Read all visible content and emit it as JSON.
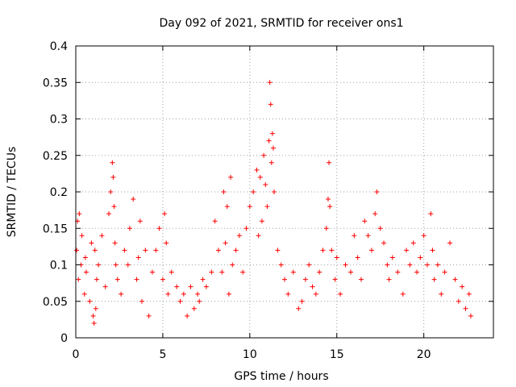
{
  "chart_data": {
    "type": "scatter",
    "title": "Day 092 of 2021, SRMTID for receiver ons1",
    "xlabel": "GPS time / hours",
    "ylabel": "SRMTID / TECUs",
    "xlim": [
      0,
      24
    ],
    "ylim": [
      0,
      0.4
    ],
    "x_ticks": [
      0,
      5,
      10,
      15,
      20
    ],
    "x_tick_labels": [
      "0",
      "5",
      "10",
      "15",
      "20"
    ],
    "y_ticks": [
      0,
      0.05,
      0.1,
      0.15,
      0.2,
      0.25,
      0.3,
      0.35,
      0.4
    ],
    "y_tick_labels": [
      "0",
      "0.05",
      "0.1",
      "0.15",
      "0.2",
      "0.25",
      "0.3",
      "0.35",
      "0.4"
    ],
    "grid": true,
    "marker": "+",
    "marker_color": "#ff0000",
    "series": [
      {
        "name": "SRMTID",
        "x": [
          0.05,
          0.1,
          0.15,
          0.2,
          0.3,
          0.35,
          0.5,
          0.55,
          0.6,
          0.8,
          0.9,
          1.0,
          1.05,
          1.1,
          1.15,
          1.2,
          1.3,
          1.5,
          1.7,
          1.9,
          2.0,
          2.1,
          2.15,
          2.2,
          2.25,
          2.3,
          2.4,
          2.6,
          2.8,
          3.0,
          3.1,
          3.3,
          3.5,
          3.6,
          3.7,
          3.8,
          4.0,
          4.2,
          4.4,
          4.6,
          4.8,
          5.0,
          5.1,
          5.2,
          5.3,
          5.5,
          5.8,
          6.0,
          6.2,
          6.4,
          6.6,
          6.8,
          7.0,
          7.1,
          7.3,
          7.5,
          7.8,
          8.0,
          8.2,
          8.4,
          8.5,
          8.6,
          8.7,
          8.8,
          8.9,
          9.0,
          9.2,
          9.4,
          9.6,
          9.8,
          10.0,
          10.2,
          10.4,
          10.5,
          10.6,
          10.7,
          10.8,
          10.9,
          11.0,
          11.1,
          11.15,
          11.2,
          11.25,
          11.3,
          11.35,
          11.4,
          11.6,
          11.8,
          12.0,
          12.2,
          12.5,
          12.8,
          13.0,
          13.2,
          13.4,
          13.6,
          13.8,
          14.0,
          14.2,
          14.4,
          14.5,
          14.55,
          14.6,
          14.7,
          14.9,
          15.0,
          15.2,
          15.5,
          15.8,
          16.0,
          16.2,
          16.4,
          16.6,
          16.8,
          17.0,
          17.2,
          17.3,
          17.5,
          17.7,
          17.9,
          18.0,
          18.2,
          18.5,
          18.8,
          19.0,
          19.2,
          19.4,
          19.6,
          19.8,
          20.0,
          20.2,
          20.4,
          20.5,
          20.6,
          20.8,
          21.0,
          21.2,
          21.5,
          21.8,
          22.0,
          22.2,
          22.4,
          22.6,
          22.7
        ],
        "y": [
          0.12,
          0.16,
          0.08,
          0.17,
          0.1,
          0.14,
          0.06,
          0.11,
          0.09,
          0.05,
          0.13,
          0.03,
          0.02,
          0.12,
          0.04,
          0.08,
          0.1,
          0.14,
          0.07,
          0.17,
          0.2,
          0.24,
          0.22,
          0.18,
          0.13,
          0.1,
          0.08,
          0.06,
          0.12,
          0.1,
          0.15,
          0.19,
          0.08,
          0.11,
          0.16,
          0.05,
          0.12,
          0.03,
          0.09,
          0.12,
          0.15,
          0.08,
          0.17,
          0.13,
          0.06,
          0.09,
          0.07,
          0.05,
          0.06,
          0.03,
          0.07,
          0.04,
          0.06,
          0.05,
          0.08,
          0.07,
          0.09,
          0.16,
          0.12,
          0.09,
          0.2,
          0.13,
          0.18,
          0.06,
          0.22,
          0.1,
          0.12,
          0.14,
          0.09,
          0.15,
          0.18,
          0.2,
          0.23,
          0.14,
          0.22,
          0.16,
          0.25,
          0.21,
          0.18,
          0.27,
          0.35,
          0.32,
          0.24,
          0.28,
          0.26,
          0.2,
          0.12,
          0.1,
          0.08,
          0.06,
          0.09,
          0.04,
          0.05,
          0.08,
          0.1,
          0.07,
          0.06,
          0.09,
          0.12,
          0.15,
          0.19,
          0.24,
          0.18,
          0.12,
          0.08,
          0.11,
          0.06,
          0.1,
          0.09,
          0.14,
          0.11,
          0.08,
          0.16,
          0.14,
          0.12,
          0.17,
          0.2,
          0.15,
          0.13,
          0.1,
          0.08,
          0.11,
          0.09,
          0.06,
          0.12,
          0.1,
          0.13,
          0.09,
          0.11,
          0.14,
          0.1,
          0.17,
          0.12,
          0.08,
          0.1,
          0.06,
          0.09,
          0.13,
          0.08,
          0.05,
          0.07,
          0.04,
          0.06,
          0.03
        ]
      }
    ]
  }
}
